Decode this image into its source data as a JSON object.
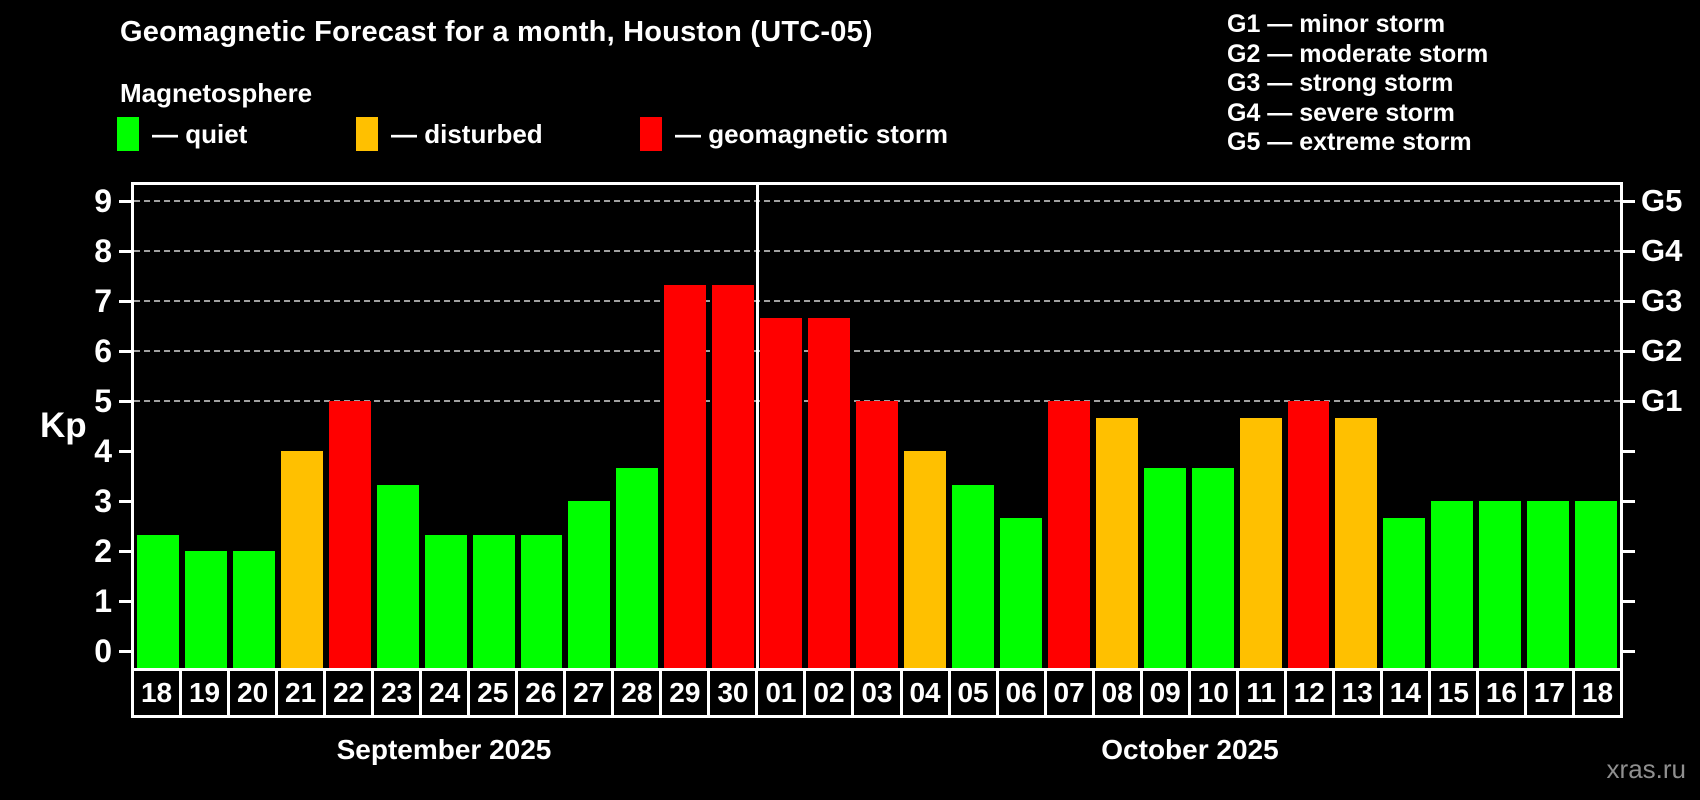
{
  "title": "Geomagnetic Forecast for a month, Houston (UTC-05)",
  "subtitle": "Magnetosphere",
  "legend": {
    "items": [
      {
        "status": "quiet",
        "label": "— quiet"
      },
      {
        "status": "disturbed",
        "label": "— disturbed"
      },
      {
        "status": "storm",
        "label": "— geomagnetic storm"
      }
    ]
  },
  "storm_scale": [
    "G1 — minor storm",
    "G2 — moderate storm",
    "G3 — strong storm",
    "G4 — severe storm",
    "G5 — extreme storm"
  ],
  "watermark": "xras.ru",
  "chart_data": {
    "type": "bar",
    "title": "Geomagnetic Forecast for a month, Houston (UTC-05)",
    "ylabel": "Kp",
    "ylim": [
      0,
      9.6
    ],
    "yticks": [
      0,
      1,
      2,
      3,
      4,
      5,
      6,
      7,
      8,
      9
    ],
    "gridlines_at": [
      5,
      6,
      7,
      8,
      9
    ],
    "grid_style": "dashed, storm levels only",
    "legend_position": "top",
    "right_axis": [
      {
        "label": "G1",
        "kp": 5
      },
      {
        "label": "G2",
        "kp": 6
      },
      {
        "label": "G3",
        "kp": 7
      },
      {
        "label": "G4",
        "kp": 8
      },
      {
        "label": "G5",
        "kp": 9
      }
    ],
    "colors": {
      "quiet": "#00ff00",
      "disturbed": "#ffc000",
      "storm": "#ff0000"
    },
    "months": [
      {
        "label": "September 2025",
        "days": [
          {
            "day": "18",
            "kp": 2.33,
            "status": "quiet"
          },
          {
            "day": "19",
            "kp": 2.0,
            "status": "quiet"
          },
          {
            "day": "20",
            "kp": 2.0,
            "status": "quiet"
          },
          {
            "day": "21",
            "kp": 4.0,
            "status": "disturbed"
          },
          {
            "day": "22",
            "kp": 5.0,
            "status": "storm"
          },
          {
            "day": "23",
            "kp": 3.33,
            "status": "quiet"
          },
          {
            "day": "24",
            "kp": 2.33,
            "status": "quiet"
          },
          {
            "day": "25",
            "kp": 2.33,
            "status": "quiet"
          },
          {
            "day": "26",
            "kp": 2.33,
            "status": "quiet"
          },
          {
            "day": "27",
            "kp": 3.0,
            "status": "quiet"
          },
          {
            "day": "28",
            "kp": 3.67,
            "status": "quiet"
          },
          {
            "day": "29",
            "kp": 7.33,
            "status": "storm"
          },
          {
            "day": "30",
            "kp": 7.33,
            "status": "storm"
          }
        ]
      },
      {
        "label": "October 2025",
        "days": [
          {
            "day": "01",
            "kp": 6.67,
            "status": "storm"
          },
          {
            "day": "02",
            "kp": 6.67,
            "status": "storm"
          },
          {
            "day": "03",
            "kp": 5.0,
            "status": "storm"
          },
          {
            "day": "04",
            "kp": 4.0,
            "status": "disturbed"
          },
          {
            "day": "05",
            "kp": 3.33,
            "status": "quiet"
          },
          {
            "day": "06",
            "kp": 2.67,
            "status": "quiet"
          },
          {
            "day": "07",
            "kp": 5.0,
            "status": "storm"
          },
          {
            "day": "08",
            "kp": 4.67,
            "status": "disturbed"
          },
          {
            "day": "09",
            "kp": 3.67,
            "status": "quiet"
          },
          {
            "day": "10",
            "kp": 3.67,
            "status": "quiet"
          },
          {
            "day": "11",
            "kp": 4.67,
            "status": "disturbed"
          },
          {
            "day": "12",
            "kp": 5.0,
            "status": "storm"
          },
          {
            "day": "13",
            "kp": 4.67,
            "status": "disturbed"
          },
          {
            "day": "14",
            "kp": 2.67,
            "status": "quiet"
          },
          {
            "day": "15",
            "kp": 3.0,
            "status": "quiet"
          },
          {
            "day": "16",
            "kp": 3.0,
            "status": "quiet"
          },
          {
            "day": "17",
            "kp": 3.0,
            "status": "quiet"
          },
          {
            "day": "18",
            "kp": 3.0,
            "status": "quiet"
          }
        ]
      }
    ]
  }
}
